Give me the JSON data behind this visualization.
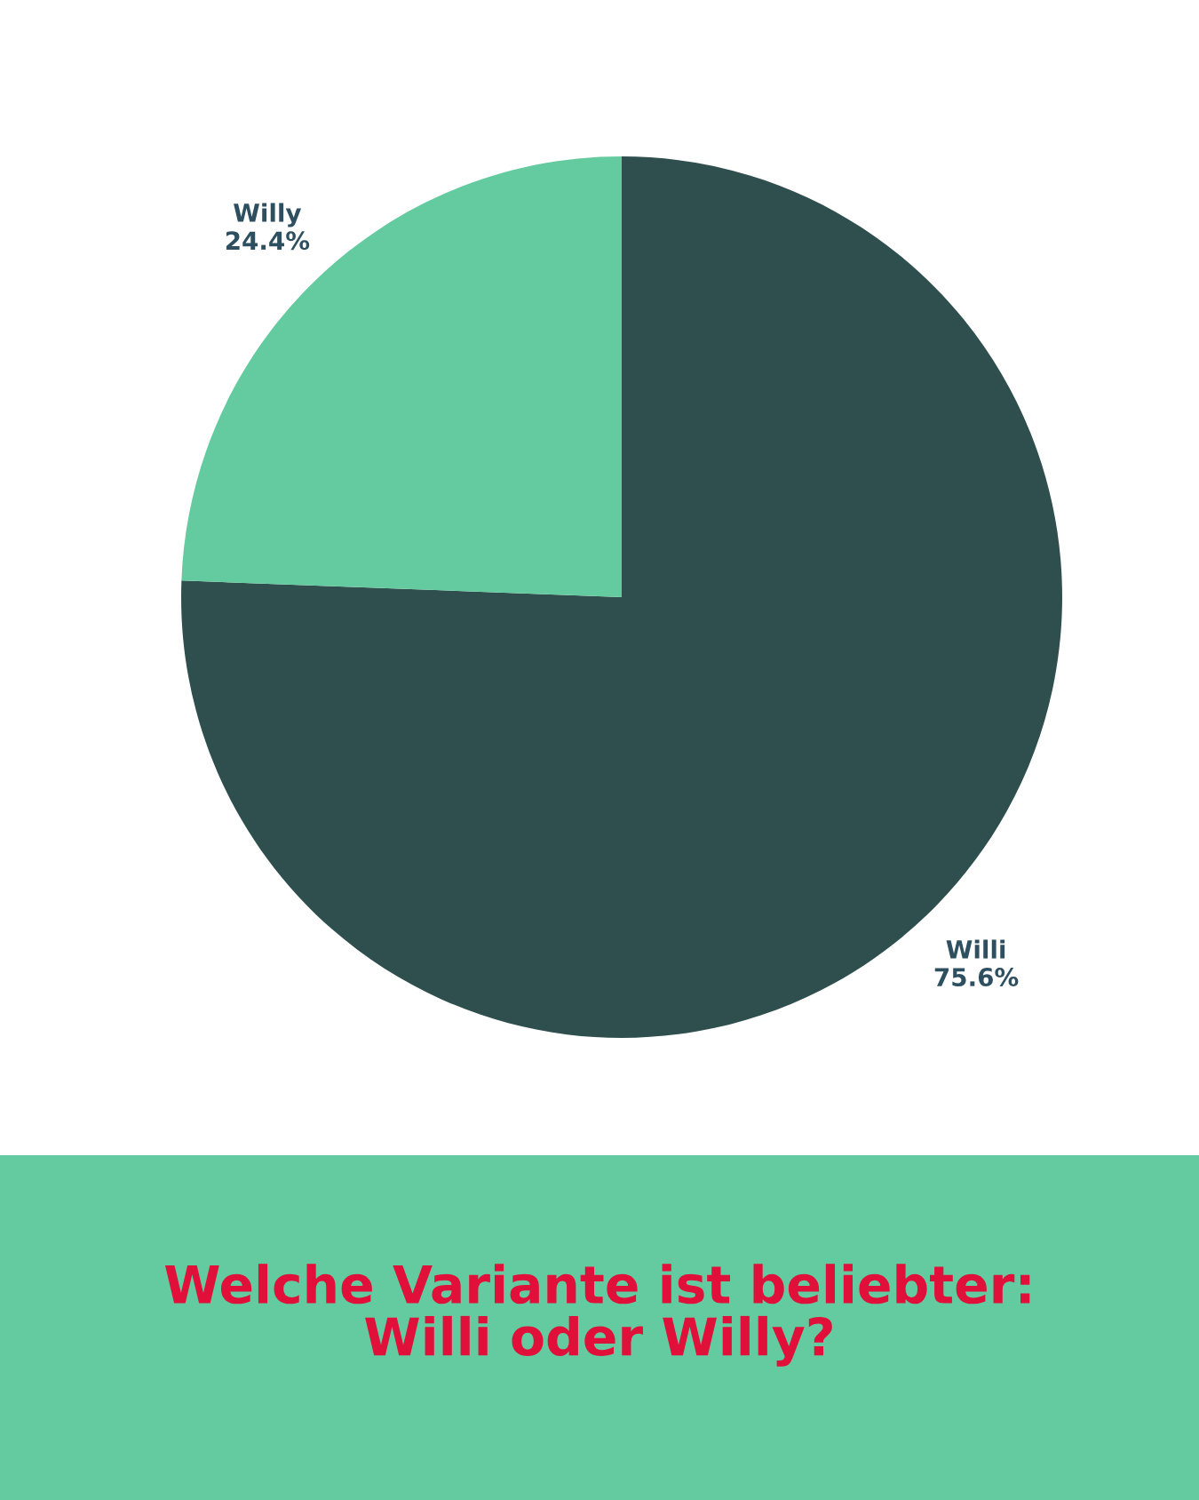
{
  "chart_data": {
    "type": "pie",
    "title": "Welche Variante ist beliebter:\nWilli oder Willy?",
    "categories": [
      "Willi",
      "Willy"
    ],
    "values": [
      75.6,
      24.4
    ],
    "colors": [
      "#2f4f4f",
      "#64cba0"
    ],
    "value_labels": [
      "75.6%",
      "24.4%"
    ]
  }
}
